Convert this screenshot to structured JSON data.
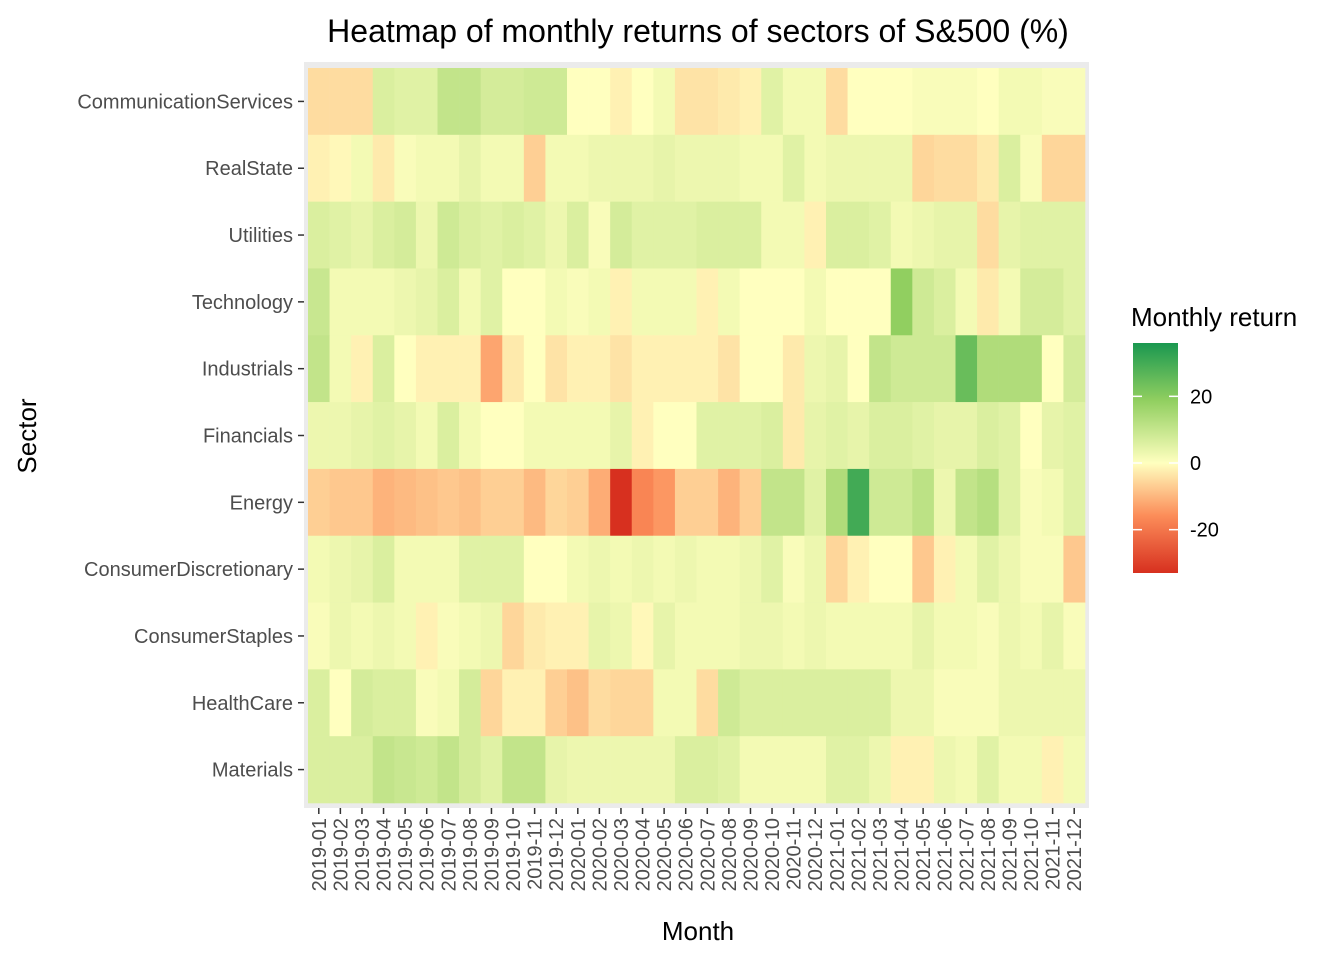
{
  "chart_data": {
    "type": "heatmap",
    "title": "Heatmap of monthly returns of sectors of S&500 (%)",
    "xlabel": "Month",
    "ylabel": "Sector",
    "legend_title": "Monthly return",
    "legend_placement": "right",
    "color_scale": {
      "low": "#d7301f",
      "mid": "#ffffbf",
      "high": "#1a9850",
      "limits": [
        -33,
        36
      ],
      "breaks": [
        20,
        0,
        -20
      ],
      "break_labels": [
        "20",
        "0",
        "-20"
      ]
    },
    "x": [
      "2019-01",
      "2019-02",
      "2019-03",
      "2019-04",
      "2019-05",
      "2019-06",
      "2019-07",
      "2019-08",
      "2019-09",
      "2019-10",
      "2019-11",
      "2019-12",
      "2020-01",
      "2020-02",
      "2020-03",
      "2020-04",
      "2020-05",
      "2020-06",
      "2020-07",
      "2020-08",
      "2020-09",
      "2020-10",
      "2020-11",
      "2020-12",
      "2021-01",
      "2021-02",
      "2021-03",
      "2021-04",
      "2021-05",
      "2021-06",
      "2021-07",
      "2021-08",
      "2021-09",
      "2021-10",
      "2021-11",
      "2021-12"
    ],
    "y": [
      "CommunicationServices",
      "RealState",
      "Utilities",
      "Technology",
      "Industrials",
      "Financials",
      "Energy",
      "ConsumerDiscretionary",
      "ConsumerStaples",
      "HealthCare",
      "Materials"
    ],
    "values": [
      [
        -5,
        -5,
        -5,
        6,
        5,
        5,
        10,
        10,
        7,
        7,
        8,
        8,
        0,
        0,
        -2,
        0,
        2,
        -4,
        -4,
        -3,
        -2,
        5,
        2,
        2,
        -5,
        0,
        0,
        0,
        1,
        1,
        1,
        0,
        2,
        2,
        1,
        1
      ],
      [
        -2,
        -1,
        2,
        -3,
        1,
        2,
        2,
        4,
        2,
        2,
        -7,
        2,
        2,
        3,
        3,
        3,
        4,
        3,
        3,
        3,
        2,
        2,
        5,
        2,
        3,
        3,
        3,
        3,
        -6,
        -5,
        -5,
        -3,
        6,
        1,
        -6,
        -6
      ],
      [
        6,
        5,
        4,
        6,
        7,
        3,
        8,
        6,
        5,
        6,
        5,
        3,
        6,
        1,
        7,
        5,
        5,
        5,
        6,
        6,
        6,
        2,
        2,
        -2,
        6,
        6,
        5,
        2,
        3,
        4,
        4,
        -5,
        4,
        5,
        5,
        5
      ],
      [
        9,
        2,
        2,
        2,
        3,
        4,
        6,
        2,
        5,
        0,
        0,
        2,
        1,
        2,
        -2,
        2,
        2,
        2,
        -2,
        2,
        0,
        0,
        0,
        2,
        0,
        0,
        0,
        18,
        8,
        6,
        2,
        -3,
        2,
        7,
        7,
        5
      ],
      [
        10,
        2,
        -2,
        6,
        0,
        -2,
        -2,
        -2,
        -13,
        -3,
        0,
        -4,
        -2,
        -2,
        -4,
        -2,
        -2,
        -2,
        -2,
        -4,
        0,
        0,
        -3,
        3,
        4,
        0,
        10,
        8,
        8,
        8,
        24,
        13,
        13,
        13,
        0,
        7
      ],
      [
        3,
        3,
        4,
        5,
        4,
        2,
        6,
        2,
        0,
        0,
        2,
        2,
        2,
        2,
        4,
        -2,
        0,
        0,
        5,
        5,
        5,
        6,
        -3,
        4,
        5,
        4,
        6,
        6,
        5,
        4,
        4,
        6,
        5,
        0,
        4,
        5
      ],
      [
        -7,
        -8,
        -8,
        -11,
        -10,
        -9,
        -8,
        -9,
        -7,
        -7,
        -10,
        -6,
        -7,
        -12,
        -33,
        -18,
        -15,
        -7,
        -7,
        -11,
        -7,
        10,
        10,
        5,
        13,
        30,
        8,
        8,
        11,
        3,
        10,
        12,
        5,
        1,
        2,
        5
      ],
      [
        2,
        3,
        4,
        6,
        2,
        2,
        2,
        5,
        5,
        5,
        0,
        0,
        2,
        3,
        2,
        3,
        2,
        3,
        2,
        2,
        3,
        5,
        1,
        3,
        -6,
        -2,
        0,
        0,
        -8,
        -2,
        2,
        5,
        3,
        1,
        1,
        -8
      ],
      [
        1,
        3,
        2,
        3,
        2,
        -2,
        1,
        2,
        3,
        -6,
        -3,
        -2,
        -2,
        4,
        3,
        -1,
        4,
        2,
        2,
        2,
        3,
        3,
        2,
        3,
        2,
        2,
        2,
        2,
        4,
        2,
        2,
        1,
        3,
        2,
        4,
        1
      ],
      [
        6,
        0,
        7,
        6,
        6,
        1,
        2,
        7,
        -6,
        -2,
        -2,
        -7,
        -9,
        -5,
        -6,
        -6,
        2,
        2,
        -5,
        8,
        6,
        6,
        6,
        6,
        6,
        6,
        6,
        3,
        3,
        1,
        1,
        1,
        3,
        3,
        3,
        3
      ],
      [
        6,
        6,
        6,
        10,
        9,
        8,
        10,
        7,
        5,
        10,
        10,
        4,
        3,
        3,
        3,
        3,
        3,
        6,
        6,
        5,
        2,
        2,
        2,
        2,
        5,
        5,
        3,
        -2,
        -2,
        3,
        2,
        5,
        2,
        2,
        -2,
        2
      ]
    ]
  }
}
